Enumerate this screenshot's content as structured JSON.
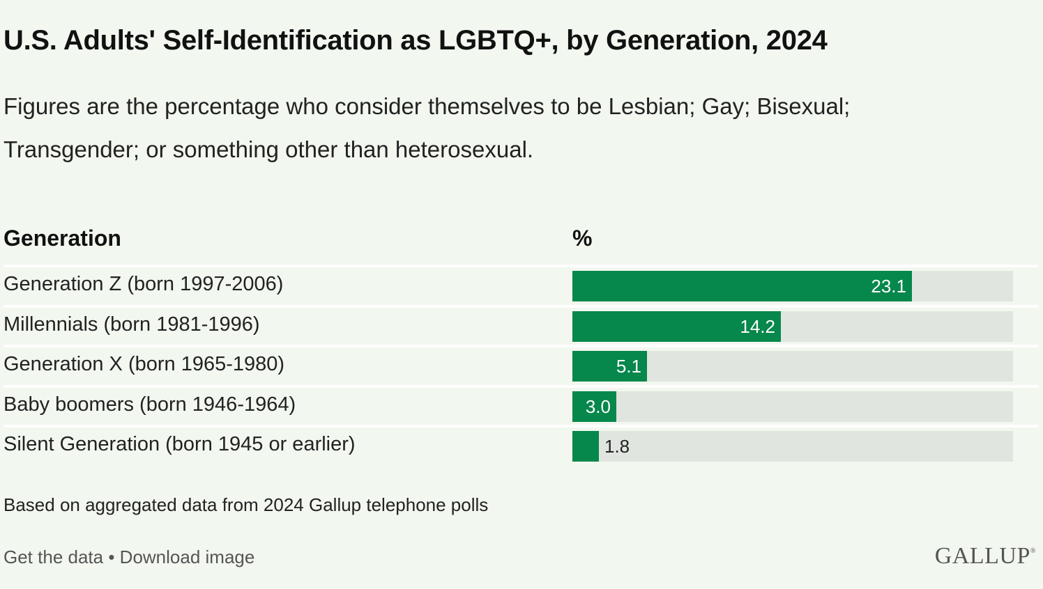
{
  "header": {
    "title": "U.S. Adults' Self-Identification as LGBTQ+, by Generation, 2024",
    "subtitle": "Figures are the percentage who consider themselves to be Lesbian; Gay; Bisexual; Transgender; or something other than heterosexual."
  },
  "table": {
    "col_generation": "Generation",
    "col_percent": "%"
  },
  "chart_data": {
    "type": "bar",
    "orientation": "horizontal",
    "categories": [
      "Generation Z (born 1997-2006)",
      "Millennials (born 1981-1996)",
      "Generation X (born 1965-1980)",
      "Baby boomers (born 1946-1964)",
      "Silent Generation (born 1945 or earlier)"
    ],
    "values": [
      23.1,
      14.2,
      5.1,
      3.0,
      1.8
    ],
    "value_labels": [
      "23.1",
      "14.2",
      "5.1",
      "3.0",
      "1.8"
    ],
    "xlim": [
      0,
      30
    ],
    "colors": {
      "bar": "#06874b",
      "track": "#e0e6df"
    }
  },
  "footer": {
    "note": "Based on aggregated data from 2024 Gallup telephone polls",
    "get_data": "Get the data",
    "separator": " • ",
    "download": "Download image",
    "logo": "GALLUP",
    "logo_mark": "®"
  }
}
